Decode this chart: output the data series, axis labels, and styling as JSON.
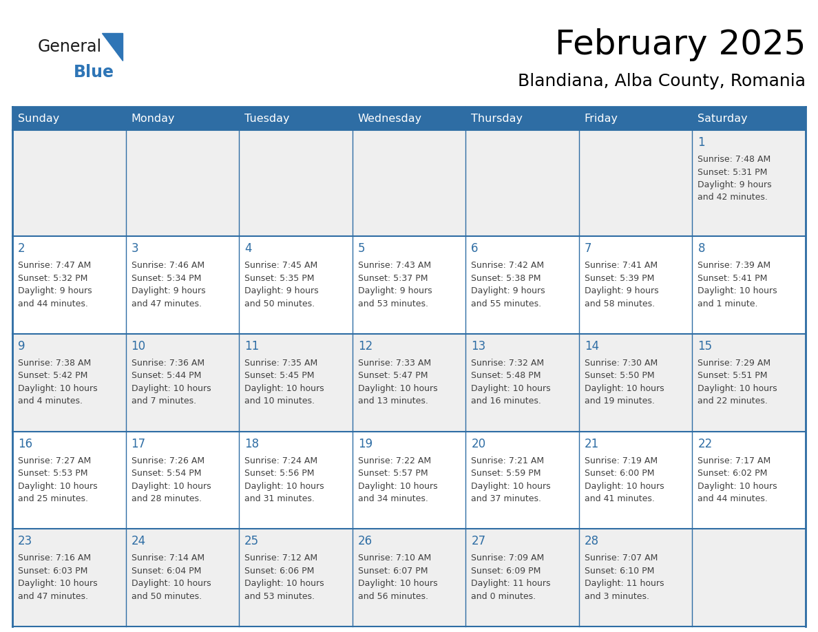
{
  "title": "February 2025",
  "subtitle": "Blandiana, Alba County, Romania",
  "header_bg": "#2E6DA4",
  "header_text_color": "#FFFFFF",
  "cell_bg_light": "#EFEFEF",
  "cell_bg_white": "#FFFFFF",
  "day_number_color": "#2E6DA4",
  "info_text_color": "#404040",
  "border_color": "#2E6DA4",
  "days_of_week": [
    "Sunday",
    "Monday",
    "Tuesday",
    "Wednesday",
    "Thursday",
    "Friday",
    "Saturday"
  ],
  "logo_general_color": "#1a1a1a",
  "logo_blue_color": "#2E75B6",
  "title_fontsize": 36,
  "subtitle_fontsize": 18,
  "header_fontsize": 11.5,
  "day_num_fontsize": 12,
  "info_fontsize": 9,
  "weeks": [
    [
      {
        "day": null,
        "info": ""
      },
      {
        "day": null,
        "info": ""
      },
      {
        "day": null,
        "info": ""
      },
      {
        "day": null,
        "info": ""
      },
      {
        "day": null,
        "info": ""
      },
      {
        "day": null,
        "info": ""
      },
      {
        "day": 1,
        "info": "Sunrise: 7:48 AM\nSunset: 5:31 PM\nDaylight: 9 hours\nand 42 minutes."
      }
    ],
    [
      {
        "day": 2,
        "info": "Sunrise: 7:47 AM\nSunset: 5:32 PM\nDaylight: 9 hours\nand 44 minutes."
      },
      {
        "day": 3,
        "info": "Sunrise: 7:46 AM\nSunset: 5:34 PM\nDaylight: 9 hours\nand 47 minutes."
      },
      {
        "day": 4,
        "info": "Sunrise: 7:45 AM\nSunset: 5:35 PM\nDaylight: 9 hours\nand 50 minutes."
      },
      {
        "day": 5,
        "info": "Sunrise: 7:43 AM\nSunset: 5:37 PM\nDaylight: 9 hours\nand 53 minutes."
      },
      {
        "day": 6,
        "info": "Sunrise: 7:42 AM\nSunset: 5:38 PM\nDaylight: 9 hours\nand 55 minutes."
      },
      {
        "day": 7,
        "info": "Sunrise: 7:41 AM\nSunset: 5:39 PM\nDaylight: 9 hours\nand 58 minutes."
      },
      {
        "day": 8,
        "info": "Sunrise: 7:39 AM\nSunset: 5:41 PM\nDaylight: 10 hours\nand 1 minute."
      }
    ],
    [
      {
        "day": 9,
        "info": "Sunrise: 7:38 AM\nSunset: 5:42 PM\nDaylight: 10 hours\nand 4 minutes."
      },
      {
        "day": 10,
        "info": "Sunrise: 7:36 AM\nSunset: 5:44 PM\nDaylight: 10 hours\nand 7 minutes."
      },
      {
        "day": 11,
        "info": "Sunrise: 7:35 AM\nSunset: 5:45 PM\nDaylight: 10 hours\nand 10 minutes."
      },
      {
        "day": 12,
        "info": "Sunrise: 7:33 AM\nSunset: 5:47 PM\nDaylight: 10 hours\nand 13 minutes."
      },
      {
        "day": 13,
        "info": "Sunrise: 7:32 AM\nSunset: 5:48 PM\nDaylight: 10 hours\nand 16 minutes."
      },
      {
        "day": 14,
        "info": "Sunrise: 7:30 AM\nSunset: 5:50 PM\nDaylight: 10 hours\nand 19 minutes."
      },
      {
        "day": 15,
        "info": "Sunrise: 7:29 AM\nSunset: 5:51 PM\nDaylight: 10 hours\nand 22 minutes."
      }
    ],
    [
      {
        "day": 16,
        "info": "Sunrise: 7:27 AM\nSunset: 5:53 PM\nDaylight: 10 hours\nand 25 minutes."
      },
      {
        "day": 17,
        "info": "Sunrise: 7:26 AM\nSunset: 5:54 PM\nDaylight: 10 hours\nand 28 minutes."
      },
      {
        "day": 18,
        "info": "Sunrise: 7:24 AM\nSunset: 5:56 PM\nDaylight: 10 hours\nand 31 minutes."
      },
      {
        "day": 19,
        "info": "Sunrise: 7:22 AM\nSunset: 5:57 PM\nDaylight: 10 hours\nand 34 minutes."
      },
      {
        "day": 20,
        "info": "Sunrise: 7:21 AM\nSunset: 5:59 PM\nDaylight: 10 hours\nand 37 minutes."
      },
      {
        "day": 21,
        "info": "Sunrise: 7:19 AM\nSunset: 6:00 PM\nDaylight: 10 hours\nand 41 minutes."
      },
      {
        "day": 22,
        "info": "Sunrise: 7:17 AM\nSunset: 6:02 PM\nDaylight: 10 hours\nand 44 minutes."
      }
    ],
    [
      {
        "day": 23,
        "info": "Sunrise: 7:16 AM\nSunset: 6:03 PM\nDaylight: 10 hours\nand 47 minutes."
      },
      {
        "day": 24,
        "info": "Sunrise: 7:14 AM\nSunset: 6:04 PM\nDaylight: 10 hours\nand 50 minutes."
      },
      {
        "day": 25,
        "info": "Sunrise: 7:12 AM\nSunset: 6:06 PM\nDaylight: 10 hours\nand 53 minutes."
      },
      {
        "day": 26,
        "info": "Sunrise: 7:10 AM\nSunset: 6:07 PM\nDaylight: 10 hours\nand 56 minutes."
      },
      {
        "day": 27,
        "info": "Sunrise: 7:09 AM\nSunset: 6:09 PM\nDaylight: 11 hours\nand 0 minutes."
      },
      {
        "day": 28,
        "info": "Sunrise: 7:07 AM\nSunset: 6:10 PM\nDaylight: 11 hours\nand 3 minutes."
      },
      {
        "day": null,
        "info": ""
      }
    ]
  ]
}
